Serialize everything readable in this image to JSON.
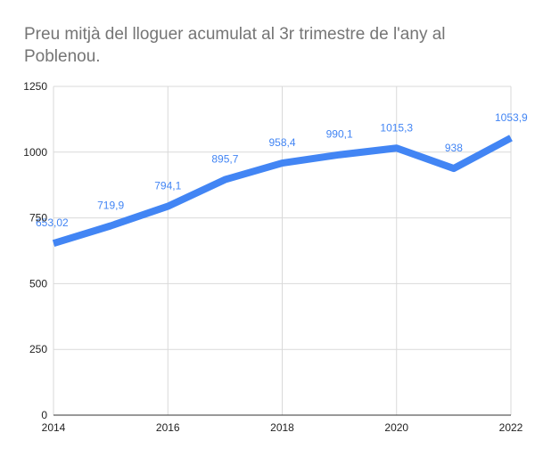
{
  "chart_data": {
    "type": "line",
    "title": "Preu mitjà del lloguer acumulat al 3r trimestre de l'any al Poblenou.",
    "xlabel": "",
    "ylabel": "",
    "x": [
      2014,
      2015,
      2016,
      2017,
      2018,
      2019,
      2020,
      2021,
      2022
    ],
    "x_ticks": [
      "2014",
      "2016",
      "2018",
      "2020",
      "2022"
    ],
    "y_ticks": [
      "0",
      "250",
      "500",
      "750",
      "1000",
      "1250"
    ],
    "ylim": [
      0,
      1250
    ],
    "xlim": [
      2014,
      2022
    ],
    "grid": true,
    "series": [
      {
        "values": [
          653.02,
          719.9,
          794.1,
          895.7,
          958.4,
          990.1,
          1015.3,
          938,
          1053.9
        ],
        "labels": [
          "653,02",
          "719,9",
          "794,1",
          "895,7",
          "958,4",
          "990,1",
          "1015,3",
          "938",
          "1053,9"
        ],
        "color": "#4285f4"
      }
    ]
  }
}
